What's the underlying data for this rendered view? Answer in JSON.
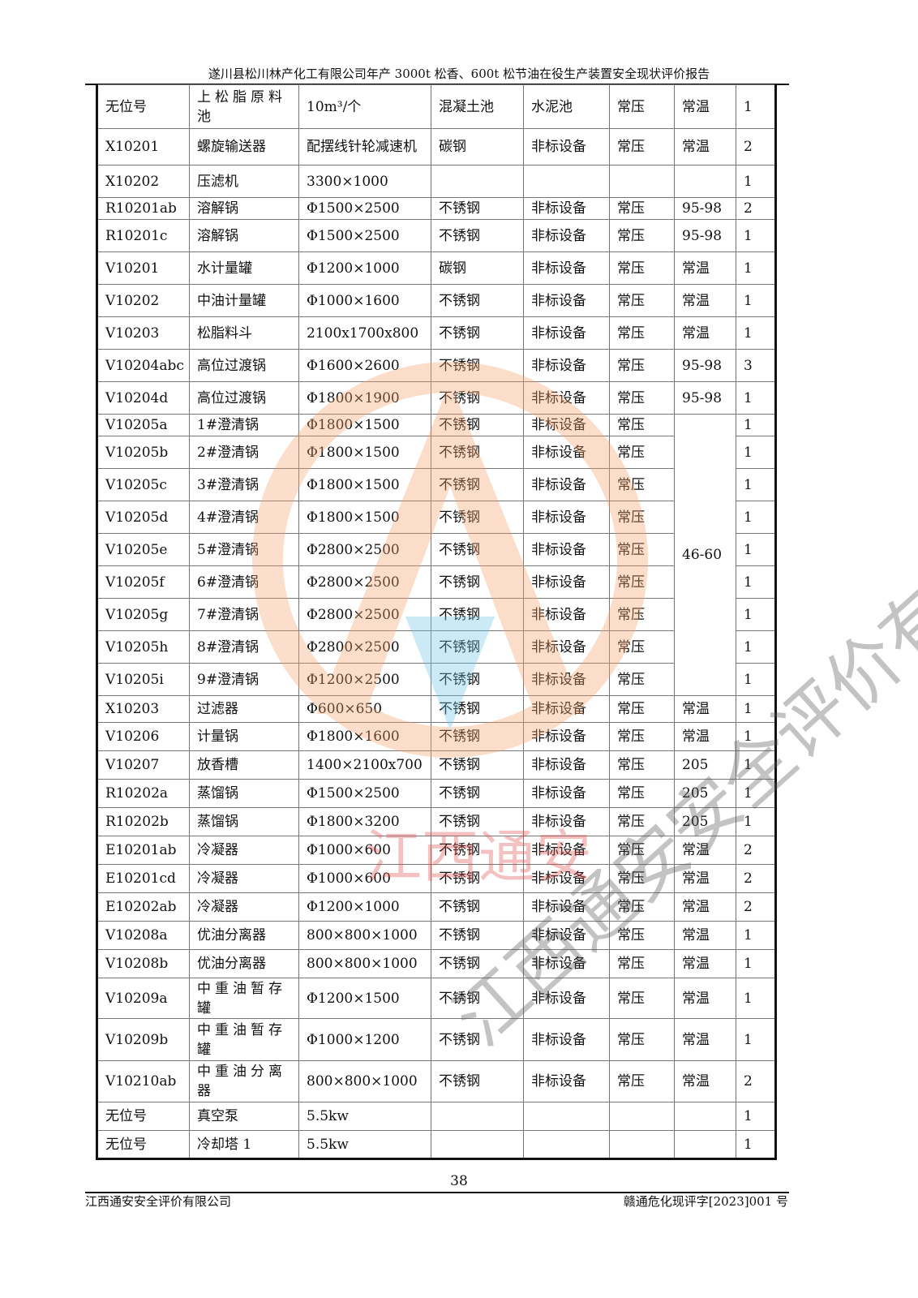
{
  "header": {
    "title": "遂川县松川林产化工有限公司年产 3000t 松香、600t 松节油在役生产装置安全现状评价报告"
  },
  "table": {
    "rows": [
      [
        "无位号",
        "上松脂原料池",
        "10m³/个",
        "混凝土池",
        "水泥池",
        "常压",
        "常温",
        "1"
      ],
      [
        "X10201",
        "螺旋输送器",
        "配摆线针轮减速机",
        "碳钢",
        "非标设备",
        "常压",
        "常温",
        "2"
      ],
      [
        "X10202",
        "压滤机",
        "3300×1000",
        "",
        "",
        "",
        "",
        "1"
      ],
      [
        "R10201ab",
        "溶解锅",
        "Φ1500×2500",
        "不锈钢",
        "非标设备",
        "常压",
        "95-98",
        "2"
      ],
      [
        "R10201c",
        "溶解锅",
        "Φ1500×2500",
        "不锈钢",
        "非标设备",
        "常压",
        "95-98",
        "1"
      ],
      [
        "V10201",
        "水计量罐",
        "Φ1200×1000",
        "碳钢",
        "非标设备",
        "常压",
        "常温",
        "1"
      ],
      [
        "V10202",
        "中油计量罐",
        "Φ1000×1600",
        "不锈钢",
        "非标设备",
        "常压",
        "常温",
        "1"
      ],
      [
        "V10203",
        "松脂料斗",
        "2100x1700x800",
        "不锈钢",
        "非标设备",
        "常压",
        "常温",
        "1"
      ],
      [
        "V10204abc",
        "高位过渡锅",
        "Φ1600×2600",
        "不锈钢",
        "非标设备",
        "常压",
        "95-98",
        "3"
      ],
      [
        "V10204d",
        "高位过渡锅",
        "Φ1800×1900",
        "不锈钢",
        "非标设备",
        "常压",
        "95-98",
        "1"
      ],
      [
        "V10205a",
        "1#澄清锅",
        "Φ1800×1500",
        "不锈钢",
        "非标设备",
        "常压",
        "46-60",
        "1"
      ],
      [
        "V10205b",
        "2#澄清锅",
        "Φ1800×1500",
        "不锈钢",
        "非标设备",
        "常压",
        null,
        "1"
      ],
      [
        "V10205c",
        "3#澄清锅",
        "Φ1800×1500",
        "不锈钢",
        "非标设备",
        "常压",
        null,
        "1"
      ],
      [
        "V10205d",
        "4#澄清锅",
        "Φ1800×1500",
        "不锈钢",
        "非标设备",
        "常压",
        null,
        "1"
      ],
      [
        "V10205e",
        "5#澄清锅",
        "Φ2800×2500",
        "不锈钢",
        "非标设备",
        "常压",
        null,
        "1"
      ],
      [
        "V10205f",
        "6#澄清锅",
        "Φ2800×2500",
        "不锈钢",
        "非标设备",
        "常压",
        null,
        "1"
      ],
      [
        "V10205g",
        "7#澄清锅",
        "Φ2800×2500",
        "不锈钢",
        "非标设备",
        "常压",
        null,
        "1"
      ],
      [
        "V10205h",
        "8#澄清锅",
        "Φ2800×2500",
        "不锈钢",
        "非标设备",
        "常压",
        null,
        "1"
      ],
      [
        "V10205i",
        "9#澄清锅",
        "Φ1200×2500",
        "不锈钢",
        "非标设备",
        "常压",
        null,
        "1"
      ],
      [
        "X10203",
        "过滤器",
        "Φ600×650",
        "不锈钢",
        "非标设备",
        "常压",
        "常温",
        "1"
      ],
      [
        "V10206",
        "计量锅",
        "Φ1800×1600",
        "不锈钢",
        "非标设备",
        "常压",
        "常温",
        "1"
      ],
      [
        "V10207",
        "放香槽",
        "1400×2100x700",
        "不锈钢",
        "非标设备",
        "常压",
        "205",
        "1"
      ],
      [
        "R10202a",
        "蒸馏锅",
        "Φ1500×2500",
        "不锈钢",
        "非标设备",
        "常压",
        "205",
        "1"
      ],
      [
        "R10202b",
        "蒸馏锅",
        "Φ1800×3200",
        "不锈钢",
        "非标设备",
        "常压",
        "205",
        "1"
      ],
      [
        "E10201ab",
        "冷凝器",
        "Φ1000×600",
        "不锈钢",
        "非标设备",
        "常压",
        "常温",
        "2"
      ],
      [
        "E10201cd",
        "冷凝器",
        "Φ1000×600",
        "不锈钢",
        "非标设备",
        "常压",
        "常温",
        "2"
      ],
      [
        "E10202ab",
        "冷凝器",
        "Φ1200×1000",
        "不锈钢",
        "非标设备",
        "常压",
        "常温",
        "2"
      ],
      [
        "V10208a",
        "优油分离器",
        "800×800×1000",
        "不锈钢",
        "非标设备",
        "常压",
        "常温",
        "1"
      ],
      [
        "V10208b",
        "优油分离器",
        "800×800×1000",
        "不锈钢",
        "非标设备",
        "常压",
        "常温",
        "1"
      ],
      [
        "V10209a",
        "中重油暂存罐",
        "Φ1200×1500",
        "不锈钢",
        "非标设备",
        "常压",
        "常温",
        "1"
      ],
      [
        "V10209b",
        "中重油暂存罐",
        "Φ1000×1200",
        "不锈钢",
        "非标设备",
        "常压",
        "常温",
        "1"
      ],
      [
        "V10210ab",
        "中重油分离器",
        "800×800×1000",
        "不锈钢",
        "非标设备",
        "常压",
        "常温",
        "2"
      ],
      [
        "无位号",
        "真空泵",
        "5.5kw",
        "",
        "",
        "",
        "",
        "1"
      ],
      [
        "无位号",
        "冷却塔 1",
        "5.5kw",
        "",
        "",
        "",
        "",
        "1"
      ]
    ]
  },
  "watermark": {
    "text": "江西通安安全评价有限公司",
    "text2": "江西通安",
    "color": "#f4a06a"
  },
  "footer": {
    "page": "38",
    "company": "江西通安安全评价有限公司",
    "doc_no": "赣通危化现评字[2023]001 号"
  }
}
